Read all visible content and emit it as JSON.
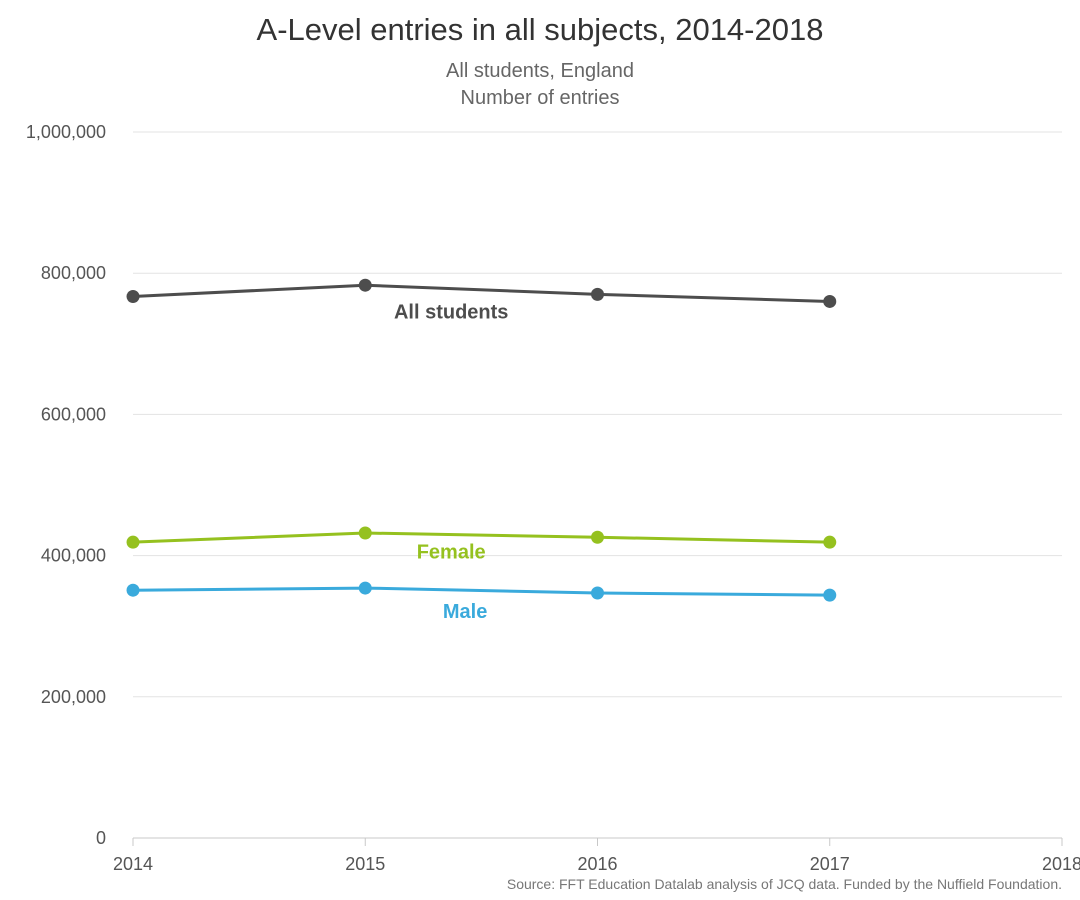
{
  "chart_data": {
    "type": "line",
    "title": "A-Level entries in all subjects, 2014-2018",
    "subtitle": "All students, England",
    "ylabel": "Number of entries",
    "x": [
      "2014",
      "2015",
      "2016",
      "2017"
    ],
    "xticks": [
      "2014",
      "2015",
      "2016",
      "2017",
      "2018"
    ],
    "xlim": [
      2014,
      2018
    ],
    "ylim": [
      0,
      1000000
    ],
    "yticks": [
      {
        "value": 0,
        "label": "0"
      },
      {
        "value": 200000,
        "label": "200,000"
      },
      {
        "value": 400000,
        "label": "400,000"
      },
      {
        "value": 600000,
        "label": "600,000"
      },
      {
        "value": 800000,
        "label": "800,000"
      },
      {
        "value": 1000000,
        "label": "1,000,000"
      }
    ],
    "grid": true,
    "series": [
      {
        "name": "All students",
        "color": "#4d4d4d",
        "values": [
          767000,
          783000,
          770000,
          760000
        ],
        "label_at": 2015.37
      },
      {
        "name": "Female",
        "color": "#95c11f",
        "values": [
          419000,
          432000,
          426000,
          419000
        ],
        "label_at": 2015.37
      },
      {
        "name": "Male",
        "color": "#3aaadc",
        "values": [
          351000,
          354000,
          347000,
          344000
        ],
        "label_at": 2015.43
      }
    ],
    "source": "Source: FFT Education Datalab analysis of JCQ data. Funded by the Nuffield Foundation."
  }
}
